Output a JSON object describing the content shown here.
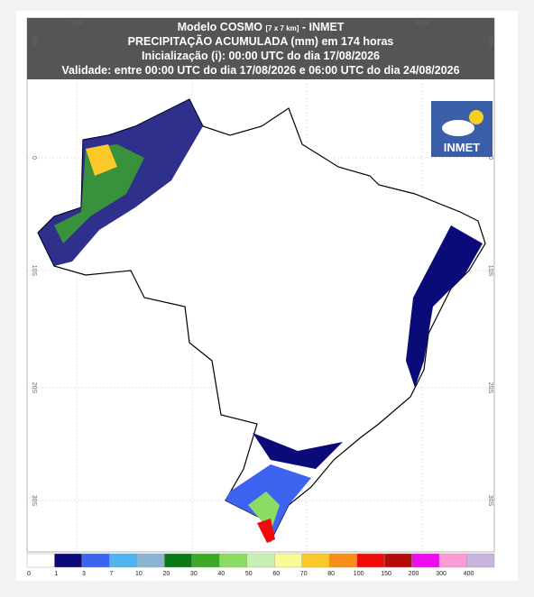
{
  "header": {
    "title_prefix": "Modelo COSMO",
    "title_res": "[7 x 7 km]",
    "title_suffix": " - INMET",
    "line2": "PRECIPITAÇÃO ACUMULADA (mm) em 174 horas",
    "line3": "Inicialização (i): 00:00 UTC do dia 17/08/2026",
    "line4": "Validade: entre 00:00 UTC do dia 17/08/2026 e 06:00 UTC do dia 24/08/2026"
  },
  "logo": {
    "label": "INMET"
  },
  "axes": {
    "top": [
      "70W",
      "50W",
      "40W"
    ],
    "left": [
      "10N",
      "0",
      "10S",
      "20S",
      "30S"
    ]
  },
  "colorbar": {
    "levels": [
      0,
      1,
      3,
      7,
      10,
      20,
      30,
      40,
      50,
      60,
      70,
      80,
      100,
      150,
      200,
      300,
      400
    ],
    "colors": [
      "#ffffff",
      "#0a0a78",
      "#3c64f0",
      "#50b4f0",
      "#8cb4d2",
      "#0a7814",
      "#3caa28",
      "#8cdc64",
      "#c8f0b4",
      "#fafa96",
      "#fac828",
      "#fa8c1e",
      "#f00a0a",
      "#b40a0a",
      "#f00af0",
      "#fa9bd2",
      "#c8b4dc"
    ]
  }
}
